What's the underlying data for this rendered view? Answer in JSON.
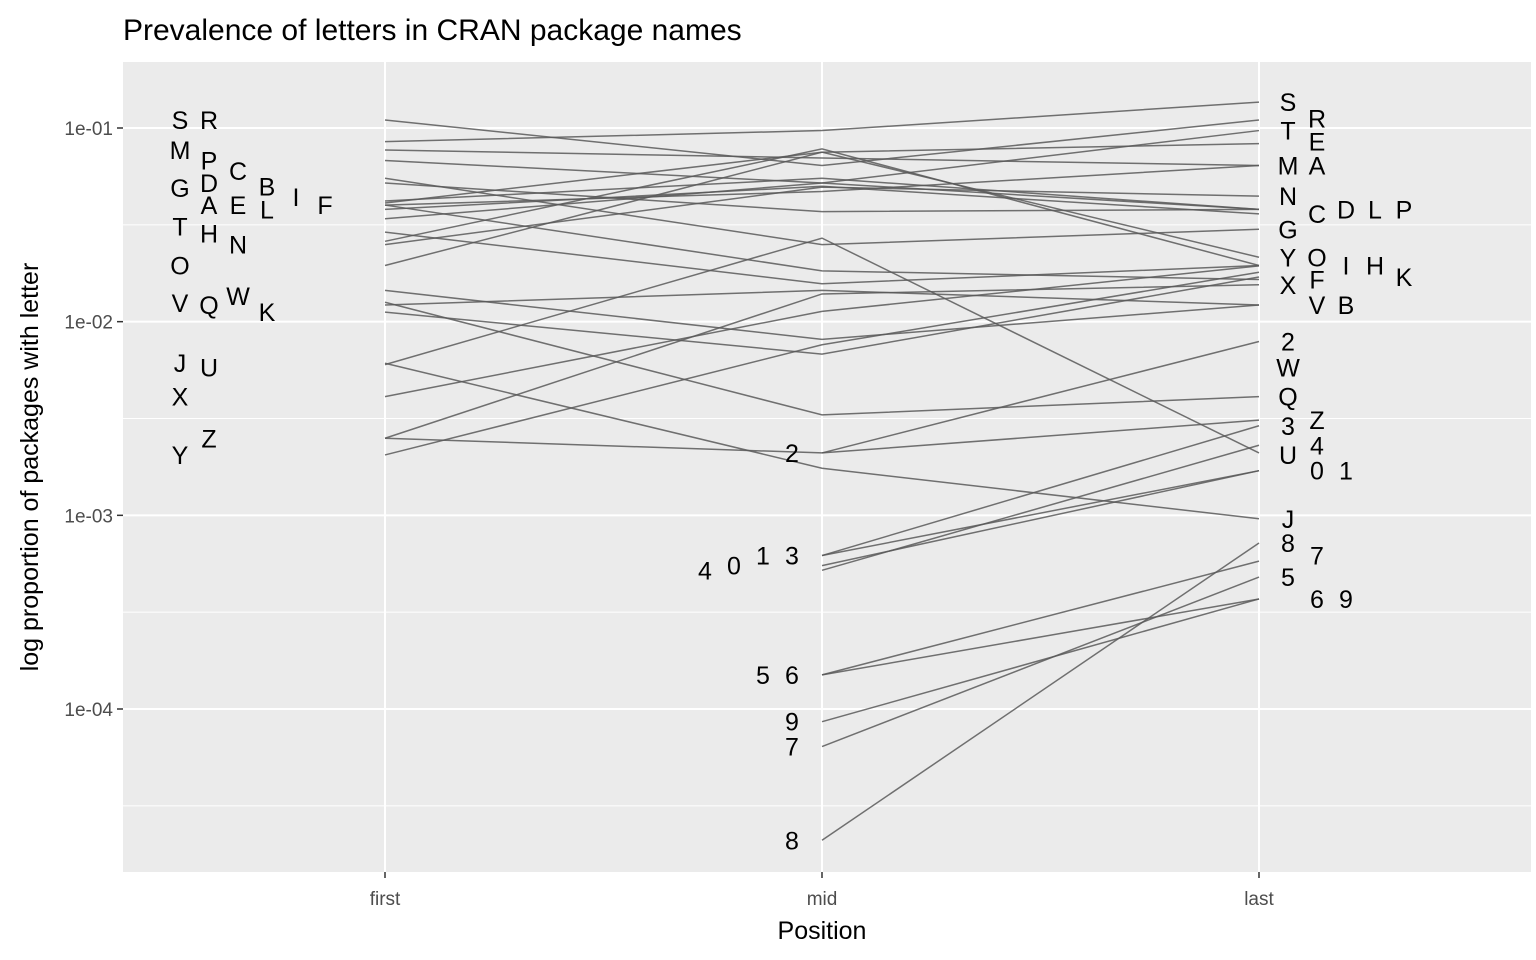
{
  "chart_data": {
    "type": "line",
    "title": "Prevalence of letters in CRAN package names",
    "xlabel": "Position",
    "ylabel": "log proportion of packages with letter",
    "x_categories": [
      "first",
      "mid",
      "last"
    ],
    "y_scale": "log10",
    "y_ticks": [
      0.0001,
      0.001,
      0.01,
      0.1
    ],
    "y_tick_labels": [
      "1e-04",
      "1e-03",
      "1e-02",
      "1e-01"
    ],
    "ylim": [
      1.3e-05,
      0.2
    ],
    "grid": true,
    "legend": "none",
    "colors": {
      "panel": "#ebebeb",
      "grid": "#ffffff",
      "line": "#595959",
      "text": "#000000",
      "tick_text": "#4d4d4d"
    },
    "series": [
      {
        "label": "A",
        "first": 0.04,
        "mid": 0.047,
        "last": 0.064
      },
      {
        "label": "B",
        "first": 0.0122,
        "mid": 0.0145,
        "last": 0.0122
      },
      {
        "label": "C",
        "first": 0.038,
        "mid": 0.05,
        "last": 0.036
      },
      {
        "label": "D",
        "first": 0.052,
        "mid": 0.037,
        "last": 0.038
      },
      {
        "label": "E",
        "first": 0.041,
        "mid": 0.075,
        "last": 0.083
      },
      {
        "label": "F",
        "first": 0.04,
        "mid": 0.0183,
        "last": 0.0165
      },
      {
        "label": "G",
        "first": 0.055,
        "mid": 0.025,
        "last": 0.03
      },
      {
        "label": "H",
        "first": 0.029,
        "mid": 0.0157,
        "last": 0.0195
      },
      {
        "label": "I",
        "first": 0.026,
        "mid": 0.078,
        "last": 0.0195
      },
      {
        "label": "J",
        "first": 0.0061,
        "mid": 0.00175,
        "last": 0.00096
      },
      {
        "label": "K",
        "first": 0.0112,
        "mid": 0.0068,
        "last": 0.017
      },
      {
        "label": "L",
        "first": 0.042,
        "mid": 0.055,
        "last": 0.038
      },
      {
        "label": "M",
        "first": 0.077,
        "mid": 0.07,
        "last": 0.064
      },
      {
        "label": "N",
        "first": 0.025,
        "mid": 0.0495,
        "last": 0.0445
      },
      {
        "label": "O",
        "first": 0.0195,
        "mid": 0.075,
        "last": 0.0215
      },
      {
        "label": "P",
        "first": 0.068,
        "mid": 0.052,
        "last": 0.038
      },
      {
        "label": "Q",
        "first": 0.0126,
        "mid": 0.0033,
        "last": 0.0041
      },
      {
        "label": "R",
        "first": 0.11,
        "mid": 0.064,
        "last": 0.11
      },
      {
        "label": "S",
        "first": 0.085,
        "mid": 0.097,
        "last": 0.136
      },
      {
        "label": "T",
        "first": 0.034,
        "mid": 0.052,
        "last": 0.097
      },
      {
        "label": "U",
        "first": 0.0041,
        "mid": 0.0113,
        "last": 0.0194
      },
      {
        "label": "V",
        "first": 0.0145,
        "mid": 0.0081,
        "last": 0.0122
      },
      {
        "label": "W",
        "first": 0.006,
        "mid": 0.027,
        "last": 0.0021
      },
      {
        "label": "X",
        "first": 0.0025,
        "mid": 0.0139,
        "last": 0.0155
      },
      {
        "label": "Y",
        "first": 0.00205,
        "mid": 0.0076,
        "last": 0.018
      },
      {
        "label": "Z",
        "first": 0.0025,
        "mid": 0.0021,
        "last": 0.0031
      },
      {
        "label": "0",
        "first": null,
        "mid": 0.00055,
        "last": 0.0017
      },
      {
        "label": "1",
        "first": null,
        "mid": 0.00062,
        "last": 0.0017
      },
      {
        "label": "2",
        "first": null,
        "mid": 0.0021,
        "last": 0.0079
      },
      {
        "label": "3",
        "first": null,
        "mid": 0.00062,
        "last": 0.0029
      },
      {
        "label": "4",
        "first": null,
        "mid": 0.00052,
        "last": 0.0023
      },
      {
        "label": "5",
        "first": null,
        "mid": 0.00015,
        "last": 0.00058
      },
      {
        "label": "6",
        "first": null,
        "mid": 0.00015,
        "last": 0.00037
      },
      {
        "label": "7",
        "first": null,
        "mid": 6.4e-05,
        "last": 0.00048
      },
      {
        "label": "8",
        "first": null,
        "mid": 2.1e-05,
        "last": 0.00072
      },
      {
        "label": "9",
        "first": null,
        "mid": 8.6e-05,
        "last": 0.00037
      }
    ],
    "point_labels": {
      "first": [
        {
          "label": "S",
          "y": 0.11
        },
        {
          "label": "R",
          "y": 0.11
        },
        {
          "label": "M",
          "y": 0.077
        },
        {
          "label": "P",
          "y": 0.068
        },
        {
          "label": "C",
          "y": 0.06
        },
        {
          "label": "G",
          "y": 0.049
        },
        {
          "label": "D",
          "y": 0.052
        },
        {
          "label": "B",
          "y": 0.05
        },
        {
          "label": "A",
          "y": 0.04
        },
        {
          "label": "E",
          "y": 0.04
        },
        {
          "label": "L",
          "y": 0.038
        },
        {
          "label": "I",
          "y": 0.044
        },
        {
          "label": "F",
          "y": 0.04
        },
        {
          "label": "T",
          "y": 0.031
        },
        {
          "label": "H",
          "y": 0.0285
        },
        {
          "label": "N",
          "y": 0.025
        },
        {
          "label": "O",
          "y": 0.0195
        },
        {
          "label": "V",
          "y": 0.0125
        },
        {
          "label": "Q",
          "y": 0.0122
        },
        {
          "label": "W",
          "y": 0.0136
        },
        {
          "label": "K",
          "y": 0.0112
        },
        {
          "label": "J",
          "y": 0.0061
        },
        {
          "label": "U",
          "y": 0.0058
        },
        {
          "label": "X",
          "y": 0.0041
        },
        {
          "label": "Y",
          "y": 0.00205
        },
        {
          "label": "Z",
          "y": 0.0025
        }
      ],
      "mid": [
        {
          "label": "2",
          "y": 0.0021
        },
        {
          "label": "3",
          "y": 0.00062
        },
        {
          "label": "1",
          "y": 0.00062
        },
        {
          "label": "0",
          "y": 0.00055
        },
        {
          "label": "4",
          "y": 0.00052
        },
        {
          "label": "6",
          "y": 0.00015
        },
        {
          "label": "5",
          "y": 0.00015
        },
        {
          "label": "9",
          "y": 8.6e-05
        },
        {
          "label": "7",
          "y": 6.4e-05
        },
        {
          "label": "8",
          "y": 2.1e-05
        }
      ],
      "last": [
        {
          "label": "S",
          "y": 0.136
        },
        {
          "label": "R",
          "y": 0.112
        },
        {
          "label": "T",
          "y": 0.097
        },
        {
          "label": "E",
          "y": 0.085
        },
        {
          "label": "M",
          "y": 0.064
        },
        {
          "label": "A",
          "y": 0.064
        },
        {
          "label": "N",
          "y": 0.0445
        },
        {
          "label": "C",
          "y": 0.036
        },
        {
          "label": "D",
          "y": 0.038
        },
        {
          "label": "L",
          "y": 0.038
        },
        {
          "label": "P",
          "y": 0.038
        },
        {
          "label": "G",
          "y": 0.03
        },
        {
          "label": "Y",
          "y": 0.0215
        },
        {
          "label": "O",
          "y": 0.0215
        },
        {
          "label": "I",
          "y": 0.0195
        },
        {
          "label": "H",
          "y": 0.0195
        },
        {
          "label": "K",
          "y": 0.017
        },
        {
          "label": "X",
          "y": 0.0155
        },
        {
          "label": "F",
          "y": 0.0165
        },
        {
          "label": "V",
          "y": 0.0122
        },
        {
          "label": "B",
          "y": 0.0122
        },
        {
          "label": "2",
          "y": 0.0079
        },
        {
          "label": "W",
          "y": 0.0058
        },
        {
          "label": "Q",
          "y": 0.0041
        },
        {
          "label": "3",
          "y": 0.0029
        },
        {
          "label": "Z",
          "y": 0.0031
        },
        {
          "label": "4",
          "y": 0.0023
        },
        {
          "label": "U",
          "y": 0.00205
        },
        {
          "label": "0",
          "y": 0.0017
        },
        {
          "label": "1",
          "y": 0.0017
        },
        {
          "label": "J",
          "y": 0.00096
        },
        {
          "label": "8",
          "y": 0.00072
        },
        {
          "label": "7",
          "y": 0.00062
        },
        {
          "label": "5",
          "y": 0.00048
        },
        {
          "label": "6",
          "y": 0.00037
        },
        {
          "label": "9",
          "y": 0.00037
        }
      ]
    }
  }
}
